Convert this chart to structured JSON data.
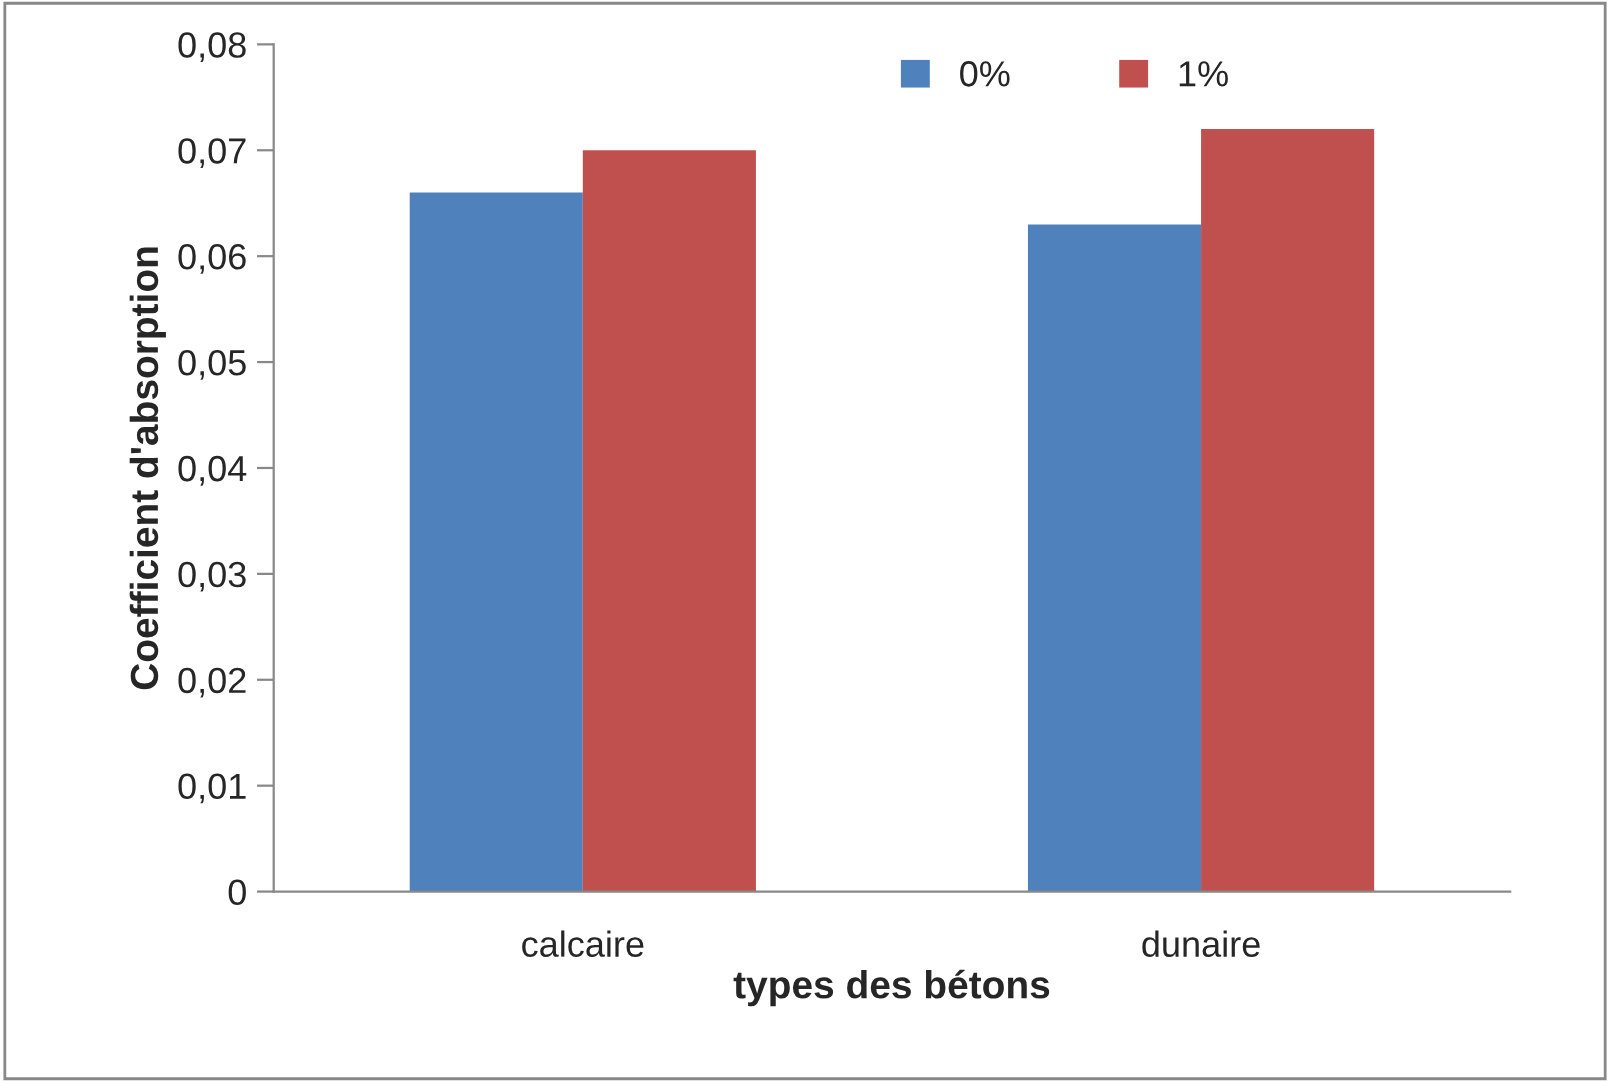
{
  "chart_data": {
    "type": "bar",
    "xlabel": "types des bétons",
    "ylabel": "Coefficient d'absorption",
    "categories": [
      "calcaire",
      "dunaire"
    ],
    "series": [
      {
        "name": "0%",
        "color": "#4f81bd",
        "values": [
          0.066,
          0.063
        ]
      },
      {
        "name": "1%",
        "color": "#c0504d",
        "values": [
          0.07,
          0.072
        ]
      }
    ],
    "ylim": [
      0,
      0.08
    ],
    "yticks": [
      0,
      {
        "value": 0.01,
        "label": "0,01"
      },
      {
        "value": 0.02,
        "label": "0,02"
      },
      {
        "value": 0.03,
        "label": "0,03"
      },
      {
        "value": 0.04,
        "label": "0,04"
      },
      {
        "value": 0.05,
        "label": "0,05"
      },
      {
        "value": 0.06,
        "label": "0,06"
      },
      {
        "value": 0.07,
        "label": "0,07"
      },
      {
        "value": 0.08,
        "label": "0,08"
      }
    ],
    "grid": false,
    "legend": "top"
  }
}
